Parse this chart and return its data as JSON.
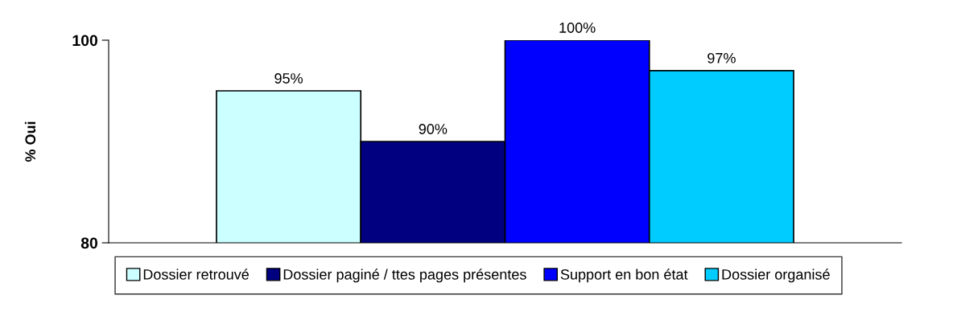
{
  "chart_data": {
    "type": "bar",
    "ylabel": "% Oui",
    "categories": [
      null
    ],
    "series": [
      {
        "name": "Dossier retrouvé",
        "color": "#ccffff",
        "values": [
          95
        ],
        "value_labels": [
          "95%"
        ]
      },
      {
        "name": "Dossier paginé / ttes pages présentes",
        "color": "#000080",
        "values": [
          90
        ],
        "value_labels": [
          "90%"
        ]
      },
      {
        "name": "Support en bon état",
        "color": "#0000ff",
        "values": [
          100
        ],
        "value_labels": [
          "100%"
        ]
      },
      {
        "name": "Dossier organisé",
        "color": "#00ccff",
        "values": [
          97
        ],
        "value_labels": [
          "97%"
        ]
      }
    ],
    "ylim": [
      80,
      100
    ],
    "yticks": [
      80,
      100
    ],
    "grid": false,
    "legend": "bottom"
  }
}
